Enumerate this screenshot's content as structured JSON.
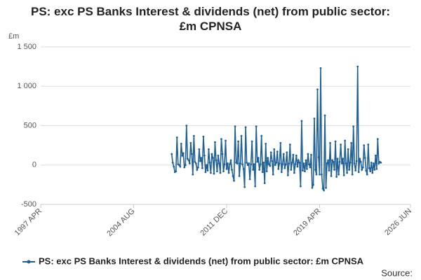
{
  "chart_data": {
    "type": "line",
    "title": "PS: exc PS Banks Interest & dividends (net) from public sector: £m CPNSA",
    "y_unit": "£m",
    "source": "Source:",
    "x": [
      "2007 AUG",
      "2007 SEP",
      "2007 OCT",
      "2007 NOV",
      "2007 DEC",
      "2008 JAN",
      "2008 FEB",
      "2008 MAR",
      "2008 APR",
      "2008 MAY",
      "2008 JUN",
      "2008 JUL",
      "2008 AUG",
      "2008 SEP",
      "2008 OCT",
      "2008 NOV",
      "2008 DEC",
      "2009 JAN",
      "2009 FEB",
      "2009 MAR",
      "2009 APR",
      "2009 MAY",
      "2009 JUN",
      "2009 JUL",
      "2009 AUG",
      "2009 SEP",
      "2009 OCT",
      "2009 NOV",
      "2009 DEC",
      "2010 JAN",
      "2010 FEB",
      "2010 MAR",
      "2010 APR",
      "2010 MAY",
      "2010 JUN",
      "2010 JUL",
      "2010 AUG",
      "2010 SEP",
      "2010 OCT",
      "2010 NOV",
      "2010 DEC",
      "2011 JAN",
      "2011 FEB",
      "2011 MAR",
      "2011 APR",
      "2011 MAY",
      "2011 JUN",
      "2011 JUL",
      "2011 AUG",
      "2011 SEP",
      "2011 OCT",
      "2011 NOV",
      "2011 DEC",
      "2012 JAN",
      "2012 FEB",
      "2012 MAR",
      "2012 APR",
      "2012 MAY",
      "2012 JUN",
      "2012 JUL",
      "2012 AUG",
      "2012 SEP",
      "2012 OCT",
      "2012 NOV",
      "2012 DEC",
      "2013 JAN",
      "2013 FEB",
      "2013 MAR",
      "2013 APR",
      "2013 MAY",
      "2013 JUN",
      "2013 JUL",
      "2013 AUG",
      "2013 SEP",
      "2013 OCT",
      "2013 NOV",
      "2013 DEC",
      "2014 JAN",
      "2014 FEB",
      "2014 MAR",
      "2014 APR",
      "2014 MAY",
      "2014 JUN",
      "2014 JUL",
      "2014 AUG",
      "2014 SEP",
      "2014 OCT",
      "2014 NOV",
      "2014 DEC",
      "2015 JAN",
      "2015 FEB",
      "2015 MAR",
      "2015 APR",
      "2015 MAY",
      "2015 JUN",
      "2015 JUL",
      "2015 AUG",
      "2015 SEP",
      "2015 OCT",
      "2015 NOV",
      "2015 DEC",
      "2016 JAN",
      "2016 FEB",
      "2016 MAR",
      "2016 APR",
      "2016 MAY",
      "2016 JUN",
      "2016 JUL",
      "2016 AUG",
      "2016 SEP",
      "2016 OCT",
      "2016 NOV",
      "2016 DEC",
      "2017 JAN",
      "2017 FEB",
      "2017 MAR",
      "2017 APR",
      "2017 MAY",
      "2017 JUN",
      "2017 JUL",
      "2017 AUG",
      "2017 SEP",
      "2017 OCT",
      "2017 NOV",
      "2017 DEC",
      "2018 JAN",
      "2018 FEB",
      "2018 MAR",
      "2018 APR",
      "2018 MAY",
      "2018 JUN",
      "2018 JUL",
      "2018 AUG",
      "2018 SEP",
      "2018 OCT",
      "2018 NOV",
      "2018 DEC",
      "2019 JAN",
      "2019 FEB",
      "2019 MAR",
      "2019 APR",
      "2019 MAY",
      "2019 JUN",
      "2019 JUL",
      "2019 AUG",
      "2019 SEP",
      "2019 OCT",
      "2019 NOV",
      "2019 DEC",
      "2020 JAN",
      "2020 FEB",
      "2020 MAR",
      "2020 APR",
      "2020 MAY",
      "2020 JUN",
      "2020 JUL",
      "2020 AUG",
      "2020 SEP",
      "2020 OCT",
      "2020 NOV",
      "2020 DEC",
      "2021 JAN",
      "2021 FEB",
      "2021 MAR",
      "2021 APR",
      "2021 MAY",
      "2021 JUN",
      "2021 JUL",
      "2021 AUG",
      "2021 SEP",
      "2021 OCT",
      "2021 NOV",
      "2021 DEC",
      "2022 JAN",
      "2022 FEB",
      "2022 MAR",
      "2022 APR",
      "2022 MAY",
      "2022 JUN",
      "2022 JUL",
      "2022 AUG",
      "2022 SEP",
      "2022 OCT",
      "2022 NOV",
      "2022 DEC",
      "2023 JAN",
      "2023 FEB",
      "2023 MAR",
      "2023 APR",
      "2023 MAY",
      "2023 JUN",
      "2023 JUL",
      "2023 AUG",
      "2023 SEP",
      "2023 OCT",
      "2023 NOV",
      "2023 DEC",
      "2024 JAN",
      "2024 FEB"
    ],
    "series": [
      {
        "name": "PS: exc PS Banks Interest & dividends (net) from public sector: £m CPNSA",
        "color": "#206095",
        "values": [
          140,
          30,
          -20,
          -90,
          -80,
          350,
          10,
          0,
          -20,
          270,
          120,
          150,
          -30,
          0,
          500,
          80,
          60,
          20,
          280,
          140,
          -120,
          370,
          40,
          20,
          -60,
          -30,
          200,
          50,
          90,
          -40,
          360,
          120,
          -90,
          0,
          -70,
          200,
          30,
          -100,
          140,
          90,
          -110,
          290,
          60,
          -80,
          120,
          20,
          -100,
          330,
          140,
          -80,
          10,
          310,
          -50,
          20,
          -100,
          10,
          60,
          -60,
          -140,
          -200,
          490,
          30,
          20,
          300,
          -140,
          20,
          370,
          10,
          -50,
          -280,
          480,
          30,
          0,
          20,
          -180,
          10,
          300,
          -60,
          10,
          -270,
          490,
          40,
          90,
          -60,
          10,
          370,
          -90,
          30,
          -230,
          270,
          -80,
          90,
          10,
          -10,
          160,
          50,
          -120,
          200,
          0,
          30,
          170,
          -50,
          20,
          280,
          -90,
          10,
          140,
          -40,
          10,
          160,
          -130,
          20,
          260,
          -60,
          30,
          130,
          -100,
          10,
          120,
          -20,
          60,
          30,
          -270,
          560,
          -70,
          20,
          -80,
          60,
          -50,
          140,
          10,
          -30,
          130,
          -290,
          -250,
          590,
          -60,
          -120,
          960,
          100,
          -120,
          1230,
          -120,
          -300,
          -320,
          630,
          -290,
          20,
          60,
          -70,
          280,
          -140,
          60,
          40,
          -60,
          300,
          -150,
          80,
          -120,
          40,
          260,
          20,
          80,
          -130,
          310,
          20,
          -100,
          200,
          -60,
          30,
          280,
          -120,
          490,
          20,
          -70,
          50,
          1250,
          -90,
          80,
          40,
          -60,
          -30,
          250,
          90,
          -70,
          -120,
          260,
          -40,
          -80,
          30,
          -100,
          20,
          -60,
          120,
          -50,
          330,
          20,
          40,
          30
        ]
      }
    ],
    "xlim": [
      "1997 APR",
      "2026 JUN"
    ],
    "xticks": [
      "1997 APR",
      "2004 AUG",
      "2011 DEC",
      "2019 APR",
      "2026 JUN"
    ],
    "ylim": [
      -500,
      1500
    ],
    "yticks": [
      -500,
      0,
      500,
      {
        "value": 1000,
        "label": "1 000"
      },
      {
        "value": 1500,
        "label": "1 500"
      }
    ],
    "grid": true
  }
}
